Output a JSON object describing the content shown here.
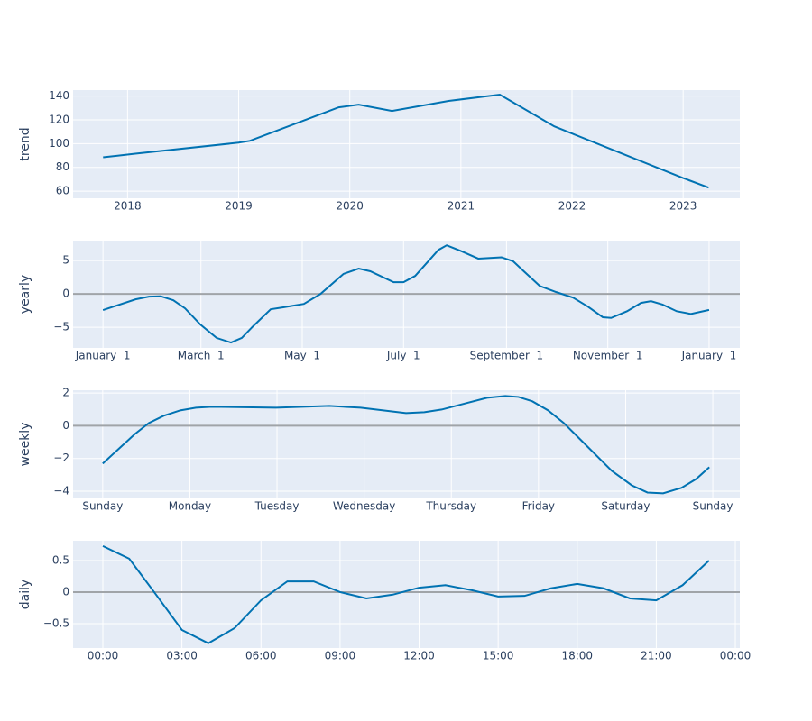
{
  "chart_data": [
    {
      "type": "line",
      "ylabel": "trend",
      "color": "#0072b2",
      "grid": true,
      "zeroline": false,
      "plot_bgcolor": "#e5ecf6",
      "x": [
        2017.78,
        2018.07,
        2019.0,
        2019.1,
        2019.9,
        2020.08,
        2020.38,
        2020.89,
        2021.35,
        2021.84,
        2023.0,
        2023.23
      ],
      "values": [
        88.5,
        91.5,
        100.8,
        102.3,
        130.5,
        132.8,
        127.5,
        135.9,
        141.2,
        114.5,
        71,
        63
      ],
      "xlim": [
        2017.51,
        2023.51
      ],
      "xticks": [
        2018,
        2019,
        2020,
        2021,
        2022,
        2023
      ],
      "ylim": [
        54,
        145
      ],
      "yticks": [
        60,
        80,
        100,
        120,
        140
      ]
    },
    {
      "type": "line",
      "ylabel": "yearly",
      "color": "#0072b2",
      "grid": true,
      "zeroline": true,
      "plot_bgcolor": "#e5ecf6",
      "x": [
        0,
        19.6,
        27.7,
        34.8,
        42.4,
        49.4,
        58.7,
        68.4,
        77.1,
        83.6,
        90.2,
        101,
        109,
        121,
        131,
        144.8,
        154,
        161,
        175,
        181,
        188,
        202,
        207,
        215,
        226,
        240,
        247,
        253,
        263,
        273,
        283,
        292,
        301,
        306,
        315.6,
        324,
        330,
        337,
        345.5,
        354,
        365
      ],
      "values": [
        -2.43,
        -0.81,
        -0.41,
        -0.35,
        -0.95,
        -2.16,
        -4.6,
        -6.6,
        -7.3,
        -6.6,
        -4.9,
        -2.3,
        -2.0,
        -1.5,
        0,
        3.0,
        3.8,
        3.4,
        1.76,
        1.76,
        2.7,
        6.6,
        7.3,
        6.5,
        5.3,
        5.5,
        4.9,
        3.5,
        1.2,
        0.27,
        -0.54,
        -1.9,
        -3.5,
        -3.6,
        -2.6,
        -1.35,
        -1.08,
        -1.6,
        -2.6,
        -3.0,
        -2.4
      ],
      "xlim": [
        -18,
        383.5
      ],
      "xticks": [
        {
          "value": 0,
          "label": "January  1"
        },
        {
          "value": 59,
          "label": "March  1"
        },
        {
          "value": 120,
          "label": "May  1"
        },
        {
          "value": 181,
          "label": "July  1"
        },
        {
          "value": 243,
          "label": "September  1"
        },
        {
          "value": 304,
          "label": "November  1"
        },
        {
          "value": 365,
          "label": "January  1"
        }
      ],
      "ylim": [
        -8.1,
        8.0
      ],
      "yticks": [
        {
          "value": -5,
          "label": "−5"
        },
        0,
        5
      ]
    },
    {
      "type": "line",
      "ylabel": "weekly",
      "color": "#0072b2",
      "grid": true,
      "zeroline": true,
      "plot_bgcolor": "#e5ecf6",
      "x": [
        0,
        0.37,
        0.53,
        0.7,
        0.89,
        1.07,
        1.25,
        1.99,
        2.6,
        2.96,
        3.48,
        3.69,
        3.89,
        4.41,
        4.62,
        4.77,
        4.93,
        5.11,
        5.29,
        5.55,
        5.84,
        6.07,
        6.25,
        6.43,
        6.64,
        6.81,
        6.96
      ],
      "values": [
        -2.31,
        -0.5,
        0.17,
        0.61,
        0.94,
        1.1,
        1.16,
        1.1,
        1.21,
        1.1,
        0.77,
        0.83,
        0.99,
        1.71,
        1.82,
        1.76,
        1.49,
        0.94,
        0.17,
        -1.21,
        -2.75,
        -3.64,
        -4.08,
        -4.13,
        -3.8,
        -3.25,
        -2.53
      ],
      "xlim": [
        -0.34,
        7.31
      ],
      "xticks": [
        {
          "value": 0,
          "label": "Sunday"
        },
        {
          "value": 1,
          "label": "Monday"
        },
        {
          "value": 2,
          "label": "Tuesday"
        },
        {
          "value": 3,
          "label": "Wednesday"
        },
        {
          "value": 4,
          "label": "Thursday"
        },
        {
          "value": 5,
          "label": "Friday"
        },
        {
          "value": 6,
          "label": "Saturday"
        },
        {
          "value": 7,
          "label": "Sunday"
        }
      ],
      "ylim": [
        -4.44,
        2.17
      ],
      "yticks": [
        {
          "value": -4,
          "label": "−4"
        },
        {
          "value": -2,
          "label": "−2"
        },
        0,
        2
      ]
    },
    {
      "type": "line",
      "ylabel": "daily",
      "color": "#0072b2",
      "grid": true,
      "zeroline": true,
      "plot_bgcolor": "#e5ecf6",
      "x": [
        0,
        1,
        2,
        3,
        4,
        5,
        6,
        7,
        8,
        9,
        10,
        11,
        12,
        13,
        14,
        15,
        16,
        17,
        18,
        19,
        20,
        21,
        22,
        23
      ],
      "values": [
        0.73,
        0.53,
        -0.03,
        -0.6,
        -0.81,
        -0.57,
        -0.13,
        0.17,
        0.17,
        0.0,
        -0.1,
        -0.04,
        0.07,
        0.11,
        0.03,
        -0.07,
        -0.06,
        0.06,
        0.13,
        0.06,
        -0.1,
        -0.13,
        0.11,
        0.5
      ],
      "xlim": [
        -1.13,
        24.17
      ],
      "xticks": [
        {
          "value": 0,
          "label": "00:00"
        },
        {
          "value": 3,
          "label": "03:00"
        },
        {
          "value": 6,
          "label": "06:00"
        },
        {
          "value": 9,
          "label": "09:00"
        },
        {
          "value": 12,
          "label": "12:00"
        },
        {
          "value": 15,
          "label": "15:00"
        },
        {
          "value": 18,
          "label": "18:00"
        },
        {
          "value": 21,
          "label": "21:00"
        },
        {
          "value": 24,
          "label": "00:00"
        }
      ],
      "ylim": [
        -0.886,
        0.814
      ],
      "yticks": [
        {
          "value": -0.5,
          "label": "−0.5"
        },
        0,
        0.5
      ]
    }
  ]
}
